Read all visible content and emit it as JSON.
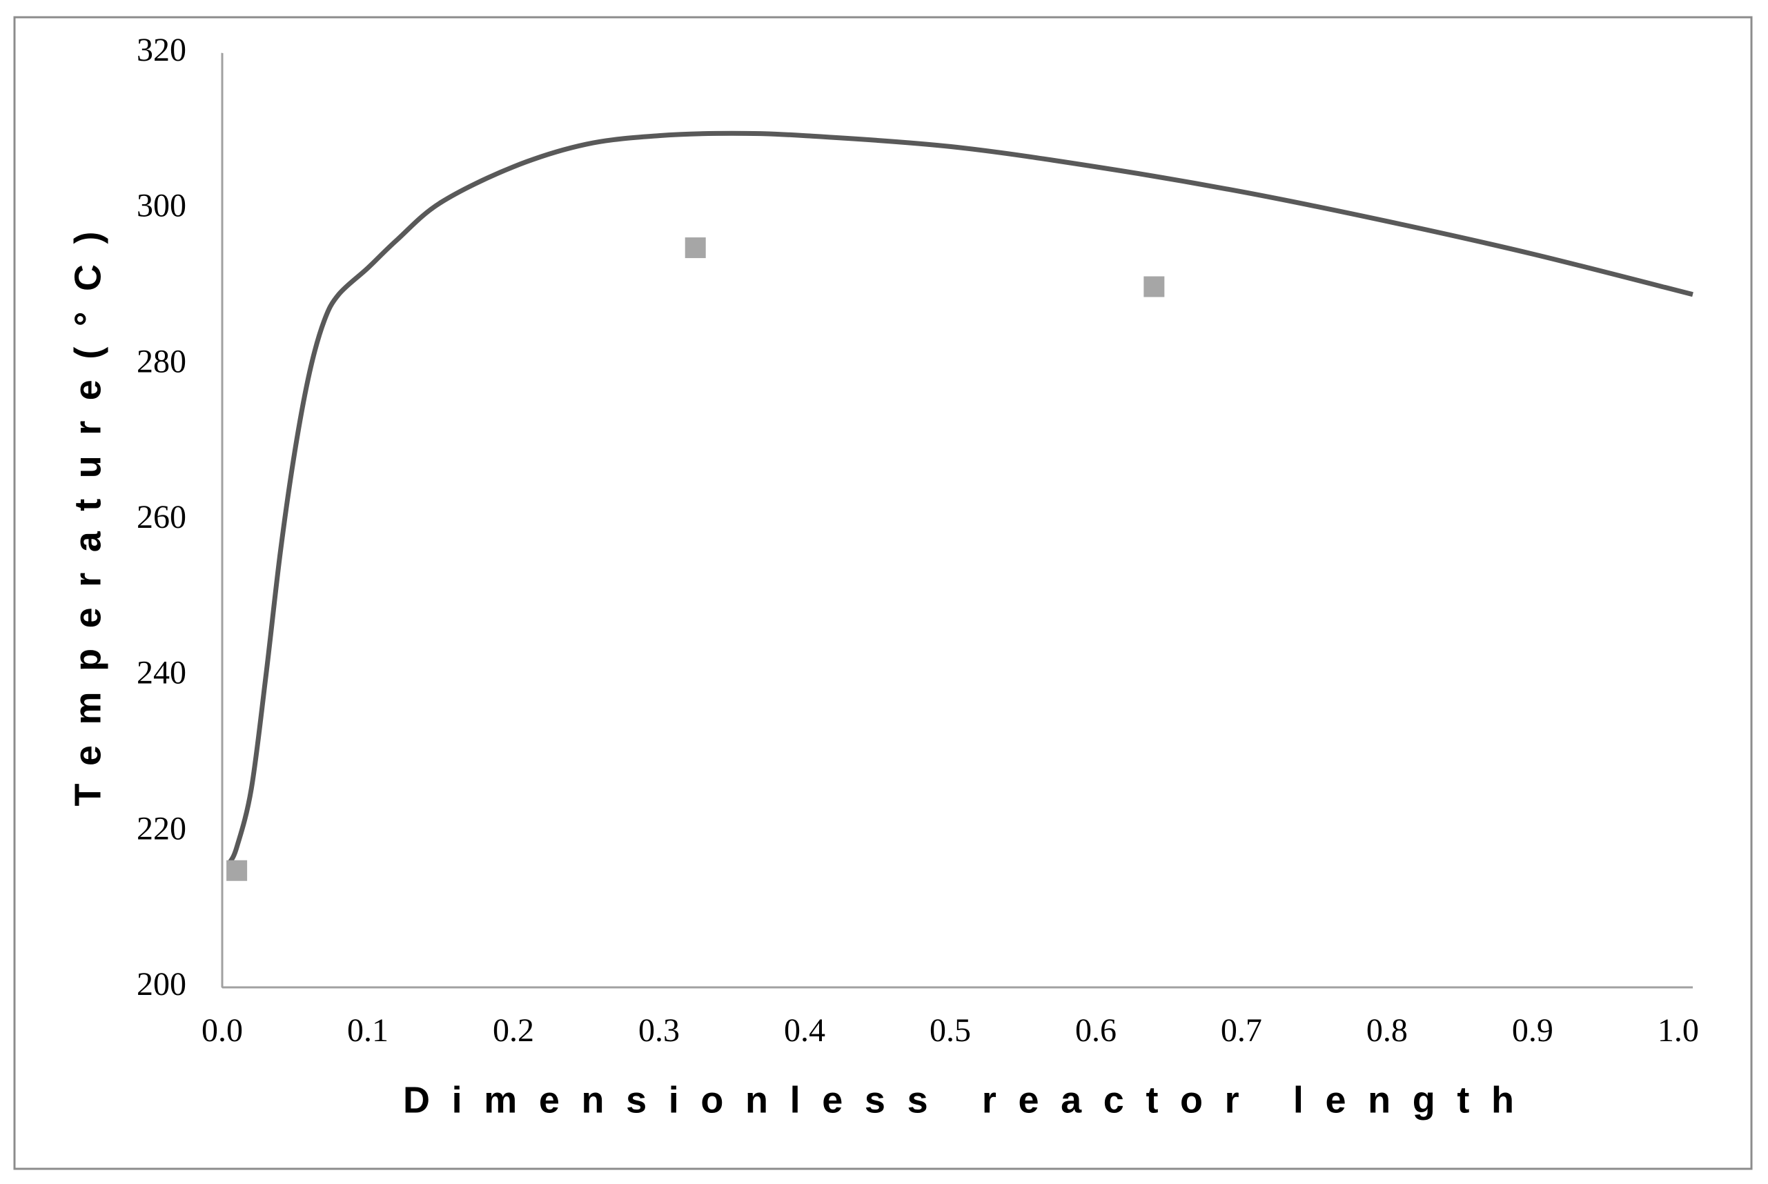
{
  "chart_data": {
    "type": "line",
    "x_label": "Dimensionless reactor length",
    "y_label": "Temperature(°C)",
    "xlim": [
      0,
      1.01
    ],
    "ylim": [
      200,
      320
    ],
    "xticks": [
      {
        "value": 0,
        "label": "0.0"
      },
      0.1,
      0.2,
      0.3,
      0.4,
      0.5,
      0.6,
      0.7,
      0.8,
      0.9,
      {
        "value": 1,
        "label": "1.0"
      }
    ],
    "yticks": [
      200,
      220,
      240,
      260,
      280,
      300,
      320
    ],
    "grid": false,
    "series": [
      {
        "type": "line",
        "color": "#595959",
        "x": [
          0.005,
          0.01,
          0.02,
          0.03,
          0.04,
          0.05,
          0.06,
          0.07,
          0.08,
          0.1,
          0.12,
          0.15,
          0.2,
          0.25,
          0.3,
          0.35,
          0.4,
          0.5,
          0.6,
          0.7,
          0.8,
          0.9,
          1.01
        ],
        "values": [
          216,
          218,
          225.5,
          240,
          256,
          269,
          279,
          285.6,
          289,
          292.4,
          296,
          300.8,
          305.4,
          308.3,
          309.4,
          309.7,
          309.4,
          308,
          305.4,
          302.2,
          298.4,
          294.2,
          289
        ]
      },
      {
        "type": "scatter",
        "color": "#a6a6a6",
        "x": [
          0.01,
          0.325,
          0.64
        ],
        "values": [
          215,
          295,
          290
        ]
      }
    ]
  }
}
